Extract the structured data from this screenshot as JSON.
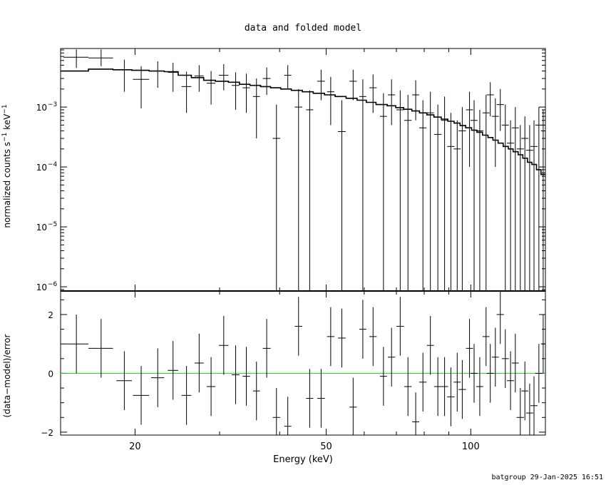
{
  "title": "data and folded model",
  "footer": "batgroup 29-Jan-2025 16:51",
  "chart_data": [
    {
      "type": "scatter",
      "panel": "top",
      "ylabel": {
        "main": "normalized counts s",
        "sup1": "−1",
        "mid": " keV",
        "sup2": "−1"
      },
      "xscale": "log",
      "yscale": "log",
      "xlim": [
        14,
        143
      ],
      "ylim": [
        8.5e-07,
        0.0095
      ],
      "yticks": [
        {
          "exp": "−3",
          "value": 0.001
        },
        {
          "exp": "−4",
          "value": 0.0001
        },
        {
          "exp": "−5",
          "value": 1e-05
        },
        {
          "exp": "−6",
          "value": 1e-06
        }
      ],
      "series": [
        {
          "data": [
            {
              "x": 15.1,
              "dx": 0.9,
              "y": 0.0068,
              "ylo": 0.0045,
              "yhi": 0.0092
            },
            {
              "x": 17.0,
              "dx": 1.0,
              "y": 0.0066,
              "ylo": 0.0048,
              "yhi": 0.0092
            },
            {
              "x": 19.0,
              "dx": 0.7,
              "y": 0.0042,
              "ylo": 0.0018,
              "yhi": 0.0062
            },
            {
              "x": 20.6,
              "dx": 0.8,
              "y": 0.0029,
              "ylo": 0.00095,
              "yhi": 0.0048
            },
            {
              "x": 22.3,
              "dx": 0.7,
              "y": 0.004,
              "ylo": 0.0021,
              "yhi": 0.0058
            },
            {
              "x": 24.0,
              "dx": 0.6,
              "y": 0.0038,
              "ylo": 0.0018,
              "yhi": 0.0055
            },
            {
              "x": 25.6,
              "dx": 0.6,
              "y": 0.0022,
              "ylo": 0.0008,
              "yhi": 0.0039
            },
            {
              "x": 27.2,
              "dx": 0.6,
              "y": 0.0033,
              "ylo": 0.0018,
              "yhi": 0.005
            },
            {
              "x": 28.8,
              "dx": 0.6,
              "y": 0.0025,
              "ylo": 0.0011,
              "yhi": 0.004
            },
            {
              "x": 30.6,
              "dx": 0.7,
              "y": 0.0034,
              "ylo": 0.0019,
              "yhi": 0.0052
            },
            {
              "x": 32.4,
              "dx": 0.6,
              "y": 0.0023,
              "ylo": 0.0009,
              "yhi": 0.0038
            },
            {
              "x": 34.1,
              "dx": 0.6,
              "y": 0.0021,
              "ylo": 0.0008,
              "yhi": 0.0036
            },
            {
              "x": 35.8,
              "dx": 0.6,
              "y": 0.0015,
              "ylo": 0.0003,
              "yhi": 0.003
            },
            {
              "x": 37.6,
              "dx": 0.7,
              "y": 0.003,
              "ylo": 0.0016,
              "yhi": 0.0046
            },
            {
              "x": 39.4,
              "dx": 0.7,
              "y": 0.0003,
              "ylo": 8.5e-07,
              "yhi": 0.0011
            },
            {
              "x": 41.6,
              "dx": 0.7,
              "y": 0.0034,
              "ylo": 0.002,
              "yhi": 0.005
            },
            {
              "x": 43.8,
              "dx": 0.8,
              "y": 0.001,
              "ylo": 8.5e-07,
              "yhi": 0.002
            },
            {
              "x": 46.2,
              "dx": 0.8,
              "y": 0.0009,
              "ylo": 8.5e-07,
              "yhi": 0.0019
            },
            {
              "x": 48.8,
              "dx": 0.9,
              "y": 0.0027,
              "ylo": 0.0013,
              "yhi": 0.0042
            },
            {
              "x": 51.1,
              "dx": 0.9,
              "y": 0.0018,
              "ylo": 0.0005,
              "yhi": 0.0032
            },
            {
              "x": 53.9,
              "dx": 1.0,
              "y": 0.00039,
              "ylo": 8.5e-07,
              "yhi": 0.0013
            },
            {
              "x": 56.9,
              "dx": 1.0,
              "y": 0.0027,
              "ylo": 0.0013,
              "yhi": 0.0042
            },
            {
              "x": 59.6,
              "dx": 1.0,
              "y": 0.0015,
              "ylo": 8.5e-07,
              "yhi": 0.0029
            },
            {
              "x": 62.6,
              "dx": 1.1,
              "y": 0.0021,
              "ylo": 0.0008,
              "yhi": 0.0035
            },
            {
              "x": 65.8,
              "dx": 1.1,
              "y": 0.0007,
              "ylo": 8.5e-07,
              "yhi": 0.0017
            },
            {
              "x": 68.4,
              "dx": 1.2,
              "y": 0.0016,
              "ylo": 0.0005,
              "yhi": 0.0029
            },
            {
              "x": 71.3,
              "dx": 1.3,
              "y": 0.0009,
              "ylo": 8.5e-07,
              "yhi": 0.0019
            },
            {
              "x": 74.0,
              "dx": 1.3,
              "y": 0.0006,
              "ylo": 8.5e-07,
              "yhi": 0.0016
            },
            {
              "x": 76.8,
              "dx": 1.3,
              "y": 0.0016,
              "ylo": 0.0006,
              "yhi": 0.0028
            },
            {
              "x": 79.5,
              "dx": 1.4,
              "y": 0.00045,
              "ylo": 8.5e-07,
              "yhi": 0.0013
            },
            {
              "x": 82.4,
              "dx": 1.4,
              "y": 0.0008,
              "ylo": 8.5e-07,
              "yhi": 0.0018
            },
            {
              "x": 85.4,
              "dx": 1.5,
              "y": 0.00035,
              "ylo": 8.5e-07,
              "yhi": 0.0011
            },
            {
              "x": 88.2,
              "dx": 1.5,
              "y": 0.0006,
              "ylo": 8.5e-07,
              "yhi": 0.0015
            },
            {
              "x": 90.9,
              "dx": 1.6,
              "y": 0.00022,
              "ylo": 8.5e-07,
              "yhi": 0.0008
            },
            {
              "x": 93.7,
              "dx": 1.6,
              "y": 0.0002,
              "ylo": 8.5e-07,
              "yhi": 0.0006
            },
            {
              "x": 96.0,
              "dx": 1.7,
              "y": 0.0004,
              "ylo": 8.5e-07,
              "yhi": 0.001
            },
            {
              "x": 99.4,
              "dx": 1.7,
              "y": 0.0009,
              "ylo": 0.0001,
              "yhi": 0.0018
            },
            {
              "x": 101.6,
              "dx": 1.7,
              "y": 0.0006,
              "ylo": 8.5e-07,
              "yhi": 0.0013
            },
            {
              "x": 104.4,
              "dx": 1.8,
              "y": 0.0004,
              "ylo": 8.5e-07,
              "yhi": 0.0009
            },
            {
              "x": 107.6,
              "dx": 1.8,
              "y": 0.0008,
              "ylo": 8.5e-07,
              "yhi": 0.0016
            },
            {
              "x": 109.8,
              "dx": 1.9,
              "y": 0.0016,
              "ylo": 0.0007,
              "yhi": 0.0026
            },
            {
              "x": 112.5,
              "dx": 1.9,
              "y": 0.0007,
              "ylo": 0.0001,
              "yhi": 0.0014
            },
            {
              "x": 115.2,
              "dx": 2.0,
              "y": 0.0011,
              "ylo": 0.0004,
              "yhi": 0.002
            },
            {
              "x": 118.0,
              "dx": 2.0,
              "y": 0.0005,
              "ylo": 8.5e-07,
              "yhi": 0.0011
            },
            {
              "x": 121.0,
              "dx": 2.1,
              "y": 0.00025,
              "ylo": 8.5e-07,
              "yhi": 0.0006
            },
            {
              "x": 123.8,
              "dx": 2.1,
              "y": 0.00045,
              "ylo": 8.5e-07,
              "yhi": 0.001
            },
            {
              "x": 126.8,
              "dx": 2.2,
              "y": 0.0002,
              "ylo": 8.5e-07,
              "yhi": 0.0005
            },
            {
              "x": 129.6,
              "dx": 2.2,
              "y": 0.0003,
              "ylo": 8.5e-07,
              "yhi": 0.0007
            },
            {
              "x": 132.6,
              "dx": 2.3,
              "y": 0.00019,
              "ylo": 8.5e-07,
              "yhi": 0.0005
            },
            {
              "x": 135.4,
              "dx": 2.3,
              "y": 0.00022,
              "ylo": 8.5e-07,
              "yhi": 0.0006
            },
            {
              "x": 138.6,
              "dx": 2.4,
              "y": 0.0005,
              "ylo": 8.5e-07,
              "yhi": 0.001
            },
            {
              "x": 141.5,
              "dx": 1.5,
              "y": 0.0004,
              "ylo": 8.5e-07,
              "yhi": 0.0009
            }
          ]
        },
        {
          "type": "step",
          "edges": [
            14,
            16,
            18,
            19.7,
            21.4,
            23,
            24.6,
            26.2,
            27.8,
            29.4,
            31.3,
            33,
            34.7,
            36.5,
            38.3,
            40.2,
            42.3,
            44.6,
            47,
            49.6,
            52.2,
            55,
            58,
            60.6,
            63.5,
            67,
            69.8,
            72.5,
            75.4,
            78.2,
            81,
            83.8,
            86.8,
            89.6,
            92.3,
            95,
            97.6,
            100.4,
            103,
            105.8,
            108.6,
            111.2,
            114,
            116.8,
            119.7,
            122.5,
            125.5,
            128.3,
            131.2,
            134,
            137,
            140,
            143
          ],
          "values": [
            0.004,
            0.0043,
            0.0042,
            0.0041,
            0.004,
            0.0039,
            0.0034,
            0.0031,
            0.0028,
            0.0027,
            0.0026,
            0.0024,
            0.0023,
            0.0022,
            0.0021,
            0.002,
            0.0019,
            0.0018,
            0.0017,
            0.0016,
            0.0015,
            0.0014,
            0.0013,
            0.0012,
            0.0011,
            0.00105,
            0.00098,
            0.00092,
            0.00086,
            0.0008,
            0.00074,
            0.00068,
            0.00063,
            0.00058,
            0.00054,
            0.00049,
            0.00045,
            0.00041,
            0.00038,
            0.00034,
            0.00031,
            0.00028,
            0.00025,
            0.00022,
            0.0002,
            0.00018,
            0.00016,
            0.00014,
            0.00012,
            0.00011,
            9e-05,
            7.5e-05
          ]
        }
      ]
    },
    {
      "type": "scatter",
      "panel": "bottom",
      "xlabel": "Energy (keV)",
      "ylabel": "(data−model)/error",
      "xscale": "log",
      "xlim": [
        14,
        143
      ],
      "ylim": [
        -2.1,
        2.8
      ],
      "yticks": [
        {
          "label": "2",
          "value": 2
        },
        {
          "label": "0",
          "value": 0
        },
        {
          "label": "−2",
          "value": -2
        }
      ],
      "xticks": [
        {
          "label": "20",
          "value": 20
        },
        {
          "label": "50",
          "value": 50
        },
        {
          "label": "100",
          "value": 100
        }
      ],
      "zero_line_color": "#22cc22",
      "data": [
        {
          "x": 15.1,
          "dx": 0.9,
          "y": 1.0,
          "err": 1
        },
        {
          "x": 17.0,
          "dx": 1.0,
          "y": 0.85,
          "err": 1
        },
        {
          "x": 19.0,
          "dx": 0.7,
          "y": -0.25,
          "err": 1
        },
        {
          "x": 20.6,
          "dx": 0.8,
          "y": -0.75,
          "err": 1
        },
        {
          "x": 22.3,
          "dx": 0.7,
          "y": -0.15,
          "err": 1
        },
        {
          "x": 24.0,
          "dx": 0.6,
          "y": 0.1,
          "err": 1
        },
        {
          "x": 25.6,
          "dx": 0.6,
          "y": -0.75,
          "err": 1
        },
        {
          "x": 27.2,
          "dx": 0.6,
          "y": 0.35,
          "err": 1
        },
        {
          "x": 28.8,
          "dx": 0.6,
          "y": -0.45,
          "err": 1
        },
        {
          "x": 30.6,
          "dx": 0.7,
          "y": 0.95,
          "err": 1
        },
        {
          "x": 32.4,
          "dx": 0.6,
          "y": -0.05,
          "err": 1
        },
        {
          "x": 34.1,
          "dx": 0.6,
          "y": -0.1,
          "err": 1
        },
        {
          "x": 35.8,
          "dx": 0.6,
          "y": -0.6,
          "err": 1
        },
        {
          "x": 37.6,
          "dx": 0.7,
          "y": 0.85,
          "err": 1
        },
        {
          "x": 39.4,
          "dx": 0.7,
          "y": -1.5,
          "err": 1
        },
        {
          "x": 41.6,
          "dx": 0.7,
          "y": -1.8,
          "err": 1
        },
        {
          "x": 43.8,
          "dx": 0.8,
          "y": 1.6,
          "err": 1
        },
        {
          "x": 46.2,
          "dx": 0.8,
          "y": -0.85,
          "err": 1
        },
        {
          "x": 48.8,
          "dx": 0.9,
          "y": -0.85,
          "err": 1
        },
        {
          "x": 51.1,
          "dx": 0.9,
          "y": 1.25,
          "err": 1
        },
        {
          "x": 53.9,
          "dx": 1.0,
          "y": 1.2,
          "err": 1
        },
        {
          "x": 56.9,
          "dx": 1.0,
          "y": -1.15,
          "err": 1
        },
        {
          "x": 59.6,
          "dx": 1.0,
          "y": 1.5,
          "err": 1
        },
        {
          "x": 62.6,
          "dx": 1.1,
          "y": 1.25,
          "err": 1
        },
        {
          "x": 65.8,
          "dx": 1.1,
          "y": -0.1,
          "err": 1
        },
        {
          "x": 68.4,
          "dx": 1.2,
          "y": 0.55,
          "err": 1
        },
        {
          "x": 71.3,
          "dx": 1.3,
          "y": 1.6,
          "err": 1
        },
        {
          "x": 74.0,
          "dx": 1.3,
          "y": -0.45,
          "err": 1
        },
        {
          "x": 76.8,
          "dx": 1.3,
          "y": -1.65,
          "err": 1
        },
        {
          "x": 79.5,
          "dx": 1.4,
          "y": -0.3,
          "err": 1
        },
        {
          "x": 82.4,
          "dx": 1.4,
          "y": 0.95,
          "err": 1
        },
        {
          "x": 85.4,
          "dx": 1.5,
          "y": -0.45,
          "err": 1
        },
        {
          "x": 88.2,
          "dx": 1.5,
          "y": -0.45,
          "err": 1
        },
        {
          "x": 90.9,
          "dx": 1.6,
          "y": -0.8,
          "err": 1
        },
        {
          "x": 93.7,
          "dx": 1.6,
          "y": -0.3,
          "err": 1
        },
        {
          "x": 96.0,
          "dx": 1.7,
          "y": -0.55,
          "err": 1
        },
        {
          "x": 99.4,
          "dx": 1.7,
          "y": 0.85,
          "err": 1
        },
        {
          "x": 101.6,
          "dx": 1.7,
          "y": 0.0,
          "err": 1
        },
        {
          "x": 104.4,
          "dx": 1.8,
          "y": -0.45,
          "err": 1
        },
        {
          "x": 107.6,
          "dx": 1.8,
          "y": 1.25,
          "err": 1
        },
        {
          "x": 109.8,
          "dx": 1.9,
          "y": 0.0,
          "err": 1
        },
        {
          "x": 112.5,
          "dx": 1.9,
          "y": 0.55,
          "err": 1
        },
        {
          "x": 115.2,
          "dx": 2.0,
          "y": 2.0,
          "err": 1
        },
        {
          "x": 118.0,
          "dx": 2.0,
          "y": 0.5,
          "err": 1
        },
        {
          "x": 121.0,
          "dx": 2.1,
          "y": -0.25,
          "err": 1
        },
        {
          "x": 123.8,
          "dx": 2.1,
          "y": 0.35,
          "err": 1
        },
        {
          "x": 126.8,
          "dx": 2.2,
          "y": -1.5,
          "err": 1
        },
        {
          "x": 129.6,
          "dx": 2.2,
          "y": -0.6,
          "err": 1
        },
        {
          "x": 132.6,
          "dx": 2.3,
          "y": -1.35,
          "err": 1
        },
        {
          "x": 135.4,
          "dx": 2.3,
          "y": -1.1,
          "err": 1
        },
        {
          "x": 138.6,
          "dx": 2.4,
          "y": 0.0,
          "err": 1
        },
        {
          "x": 141.5,
          "dx": 1.5,
          "y": 1.0,
          "err": 1
        }
      ]
    }
  ]
}
